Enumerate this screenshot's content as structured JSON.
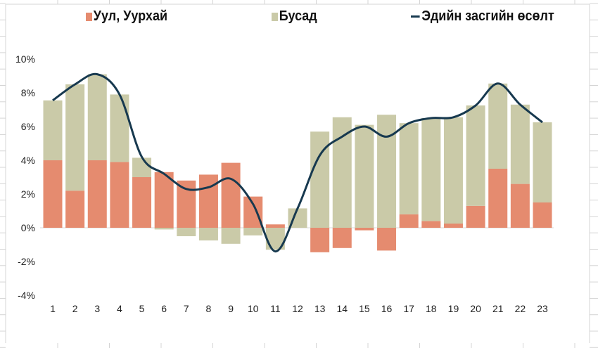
{
  "chart_data": {
    "type": "bar",
    "stacked": true,
    "categories": [
      "1",
      "2",
      "3",
      "4",
      "5",
      "6",
      "7",
      "8",
      "9",
      "10",
      "11",
      "12",
      "13",
      "14",
      "15",
      "16",
      "17",
      "18",
      "19",
      "20",
      "21",
      "22",
      "23"
    ],
    "series": [
      {
        "name": "Уул, Уурхай",
        "type": "bar",
        "color": "#E58B6F",
        "values": [
          4.0,
          2.2,
          4.0,
          3.9,
          3.0,
          3.3,
          2.8,
          3.15,
          3.85,
          1.85,
          0.2,
          0.0,
          -1.45,
          -1.2,
          -0.15,
          -1.35,
          0.8,
          0.4,
          0.25,
          1.3,
          3.5,
          2.6,
          1.5
        ]
      },
      {
        "name": "Бусад",
        "type": "bar",
        "color": "#CACAA8",
        "values": [
          3.55,
          6.3,
          5.1,
          4.0,
          1.15,
          -0.1,
          -0.5,
          -0.75,
          -0.95,
          -0.45,
          -1.3,
          1.15,
          5.7,
          6.55,
          6.1,
          6.7,
          5.4,
          6.1,
          6.3,
          5.95,
          5.05,
          4.7,
          4.75
        ]
      },
      {
        "name": "Эдийн засгийн өсөлт",
        "type": "line",
        "color": "#17394F",
        "values": [
          7.55,
          8.5,
          9.1,
          7.9,
          4.2,
          3.2,
          2.3,
          2.4,
          2.9,
          1.4,
          -1.4,
          1.15,
          4.3,
          5.4,
          6.0,
          5.4,
          6.2,
          6.5,
          6.55,
          7.25,
          8.55,
          7.3,
          6.25
        ]
      }
    ],
    "yticks": [
      "10%",
      "8%",
      "6%",
      "4%",
      "2%",
      "0%",
      "-2%",
      "-4%"
    ],
    "ylim": [
      -4,
      10
    ],
    "legend": "top",
    "grid": false
  }
}
